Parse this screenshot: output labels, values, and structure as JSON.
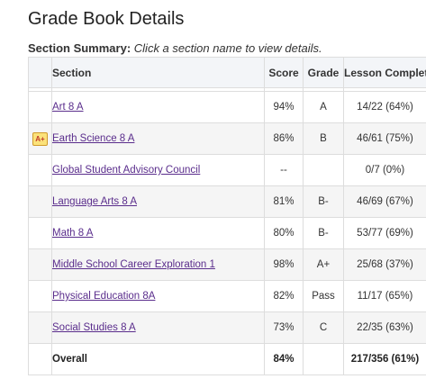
{
  "page": {
    "title": "Grade Book Details",
    "summary_label": "Section Summary:",
    "summary_hint": "Click a section name to view details."
  },
  "table": {
    "headers": {
      "section": "Section",
      "score": "Score",
      "grade": "Grade",
      "lesson_completion": "Lesson Completion"
    },
    "rows": [
      {
        "section": "Art 8 A",
        "score": "94%",
        "grade": "A",
        "lesson_completion": "14/22 (64%)",
        "badge": ""
      },
      {
        "section": "Earth Science 8 A",
        "score": "86%",
        "grade": "B",
        "lesson_completion": "46/61 (75%)",
        "badge": "A+"
      },
      {
        "section": "Global Student Advisory Council",
        "score": "--",
        "grade": "",
        "lesson_completion": "0/7 (0%)",
        "badge": ""
      },
      {
        "section": "Language Arts 8 A",
        "score": "81%",
        "grade": "B-",
        "lesson_completion": "46/69 (67%)",
        "badge": ""
      },
      {
        "section": "Math 8 A",
        "score": "80%",
        "grade": "B-",
        "lesson_completion": "53/77 (69%)",
        "badge": ""
      },
      {
        "section": "Middle School Career Exploration 1",
        "score": "98%",
        "grade": "A+",
        "lesson_completion": "25/68 (37%)",
        "badge": ""
      },
      {
        "section": "Physical Education 8A",
        "score": "82%",
        "grade": "Pass",
        "lesson_completion": "11/17 (65%)",
        "badge": ""
      },
      {
        "section": "Social Studies 8 A",
        "score": "73%",
        "grade": "C",
        "lesson_completion": "22/35 (63%)",
        "badge": ""
      }
    ],
    "overall": {
      "label": "Overall",
      "score": "84%",
      "grade": "",
      "lesson_completion": "217/356 (61%)"
    }
  },
  "colors": {
    "link": "#5a2d8c",
    "header_bg": "#f3f5f8",
    "alt_row_bg": "#f5f5f5",
    "badge_bg": "#fbe27a"
  }
}
